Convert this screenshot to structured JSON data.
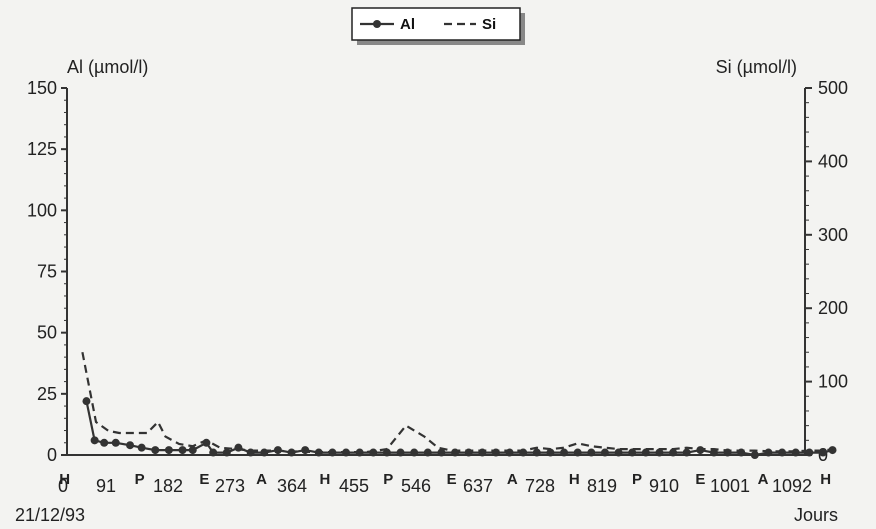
{
  "chart_data": {
    "type": "line",
    "legend": {
      "position": "top-center",
      "entries": [
        "Al",
        "Si"
      ]
    },
    "left_axis": {
      "label": "Al (µmol/l)",
      "range": [
        0,
        150
      ],
      "ticks": [
        "0",
        "25",
        "50",
        "75",
        "100",
        "125",
        "150"
      ]
    },
    "right_axis": {
      "label": "Si (µmol/l)",
      "range": [
        0,
        500
      ],
      "ticks": [
        "0",
        "100",
        "200",
        "300",
        "400",
        "500"
      ]
    },
    "x_axis": {
      "label": "Jours",
      "start_label": "21/12/93",
      "range": [
        0,
        1180
      ],
      "ticks": [
        {
          "value": 0,
          "label": "0"
        },
        {
          "value": 91,
          "label": "91"
        },
        {
          "value": 182,
          "label": "182"
        },
        {
          "value": 273,
          "label": "273"
        },
        {
          "value": 364,
          "label": "364"
        },
        {
          "value": 455,
          "label": "455"
        },
        {
          "value": 546,
          "label": "546"
        },
        {
          "value": 637,
          "label": "637"
        },
        {
          "value": 728,
          "label": "728"
        },
        {
          "value": 819,
          "label": "819"
        },
        {
          "value": 910,
          "label": "910"
        },
        {
          "value": 1001,
          "label": "1001"
        },
        {
          "value": 1092,
          "label": "1092"
        }
      ],
      "seasons": [
        {
          "value": 45,
          "label": "H"
        },
        {
          "value": 155,
          "label": "P"
        },
        {
          "value": 250,
          "label": "E"
        },
        {
          "value": 334,
          "label": "A"
        },
        {
          "value": 427,
          "label": "H"
        },
        {
          "value": 520,
          "label": "P"
        },
        {
          "value": 613,
          "label": "E"
        },
        {
          "value": 702,
          "label": "A"
        },
        {
          "value": 793,
          "label": "H"
        },
        {
          "value": 885,
          "label": "P"
        },
        {
          "value": 978,
          "label": "E"
        },
        {
          "value": 1070,
          "label": "A"
        },
        {
          "value": 1162,
          "label": "H"
        }
      ]
    },
    "series": [
      {
        "name": "Al",
        "axis": "left",
        "style": "solid-with-markers",
        "color": "#333333",
        "points": [
          [
            77,
            22
          ],
          [
            89,
            6
          ],
          [
            103,
            5
          ],
          [
            120,
            5
          ],
          [
            141,
            4
          ],
          [
            158,
            3
          ],
          [
            178,
            2
          ],
          [
            198,
            2
          ],
          [
            218,
            2
          ],
          [
            233,
            2
          ],
          [
            253,
            5
          ],
          [
            263,
            1
          ],
          [
            283,
            1
          ],
          [
            300,
            3
          ],
          [
            318,
            1
          ],
          [
            338,
            1
          ],
          [
            358,
            2
          ],
          [
            378,
            1
          ],
          [
            398,
            2
          ],
          [
            418,
            1
          ],
          [
            438,
            1
          ],
          [
            458,
            1
          ],
          [
            478,
            1
          ],
          [
            498,
            1
          ],
          [
            518,
            1
          ],
          [
            538,
            1
          ],
          [
            558,
            1
          ],
          [
            578,
            1
          ],
          [
            598,
            1
          ],
          [
            618,
            1
          ],
          [
            638,
            1
          ],
          [
            658,
            1
          ],
          [
            678,
            1
          ],
          [
            698,
            1
          ],
          [
            718,
            1
          ],
          [
            738,
            1
          ],
          [
            758,
            1
          ],
          [
            778,
            1
          ],
          [
            798,
            1
          ],
          [
            818,
            1
          ],
          [
            838,
            1
          ],
          [
            858,
            1
          ],
          [
            878,
            1
          ],
          [
            898,
            1
          ],
          [
            918,
            1
          ],
          [
            938,
            1
          ],
          [
            958,
            1
          ],
          [
            978,
            2
          ],
          [
            998,
            1
          ],
          [
            1018,
            1
          ],
          [
            1038,
            1
          ],
          [
            1058,
            0
          ],
          [
            1078,
            1
          ],
          [
            1098,
            1
          ],
          [
            1118,
            1
          ],
          [
            1138,
            1
          ],
          [
            1158,
            1
          ],
          [
            1172,
            2
          ]
        ]
      },
      {
        "name": "Si",
        "axis": "right",
        "style": "dashed",
        "color": "#333333",
        "points": [
          [
            71,
            140
          ],
          [
            91,
            45
          ],
          [
            109,
            33
          ],
          [
            125,
            30
          ],
          [
            147,
            30
          ],
          [
            166,
            30
          ],
          [
            182,
            45
          ],
          [
            193,
            25
          ],
          [
            213,
            15
          ],
          [
            233,
            12
          ],
          [
            253,
            20
          ],
          [
            273,
            10
          ],
          [
            298,
            8
          ],
          [
            318,
            6
          ],
          [
            348,
            6
          ],
          [
            378,
            5
          ],
          [
            418,
            4
          ],
          [
            458,
            4
          ],
          [
            488,
            4
          ],
          [
            518,
            8
          ],
          [
            546,
            40
          ],
          [
            573,
            25
          ],
          [
            593,
            10
          ],
          [
            613,
            6
          ],
          [
            633,
            6
          ],
          [
            663,
            6
          ],
          [
            693,
            6
          ],
          [
            718,
            6
          ],
          [
            738,
            10
          ],
          [
            758,
            8
          ],
          [
            778,
            10
          ],
          [
            798,
            16
          ],
          [
            818,
            12
          ],
          [
            838,
            10
          ],
          [
            858,
            8
          ],
          [
            878,
            8
          ],
          [
            898,
            8
          ],
          [
            918,
            8
          ],
          [
            938,
            8
          ],
          [
            958,
            10
          ],
          [
            978,
            8
          ],
          [
            998,
            8
          ],
          [
            1018,
            6
          ],
          [
            1038,
            6
          ],
          [
            1058,
            6
          ],
          [
            1078,
            5
          ],
          [
            1098,
            5
          ],
          [
            1118,
            5
          ],
          [
            1138,
            6
          ],
          [
            1158,
            6
          ],
          [
            1172,
            8
          ]
        ]
      }
    ]
  }
}
